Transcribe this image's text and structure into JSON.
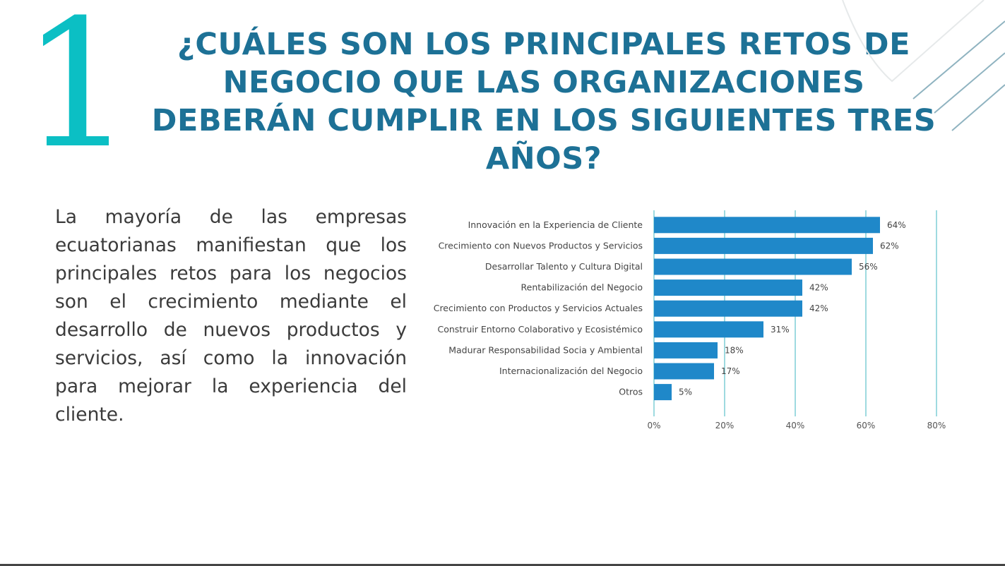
{
  "slide": {
    "number": "1",
    "title": "¿CUÁLES SON LOS PRINCIPALES RETOS DE NEGOCIO QUE LAS ORGANIZACIONES DEBERÁN CUMPLIR EN LOS SIGUIENTES TRES AÑOS?",
    "paragraph": "La mayoría de las empresas ecuatorianas manifiestan que los principales retos para los negocios son el crecimiento mediante el desarrollo de nuevos productos y servicios, así como la innovación para mejorar la experiencia del cliente."
  },
  "colors": {
    "number": "#0bbfc4",
    "title": "#1d7196",
    "bar": "#1f88c9",
    "gridline": "#7fcdd6"
  },
  "chart_data": {
    "type": "bar",
    "orientation": "horizontal",
    "categories": [
      "Innovación en la Experiencia de Cliente",
      "Crecimiento con Nuevos Productos y Servicios",
      "Desarrollar Talento y Cultura Digital",
      "Rentabilización del Negocio",
      "Crecimiento con Productos y Servicios Actuales",
      "Construir Entorno Colaborativo y Ecosistémico",
      "Madurar Responsabilidad Socia y Ambiental",
      "Internacionalización del Negocio",
      "Otros"
    ],
    "values": [
      64,
      62,
      56,
      42,
      42,
      31,
      18,
      17,
      5
    ],
    "value_labels": [
      "64%",
      "62%",
      "56%",
      "42%",
      "42%",
      "31%",
      "18%",
      "17%",
      "5%"
    ],
    "xlim": [
      0,
      80
    ],
    "xticks": [
      "0%",
      "20%",
      "40%",
      "60%",
      "80%"
    ],
    "grid": true
  }
}
